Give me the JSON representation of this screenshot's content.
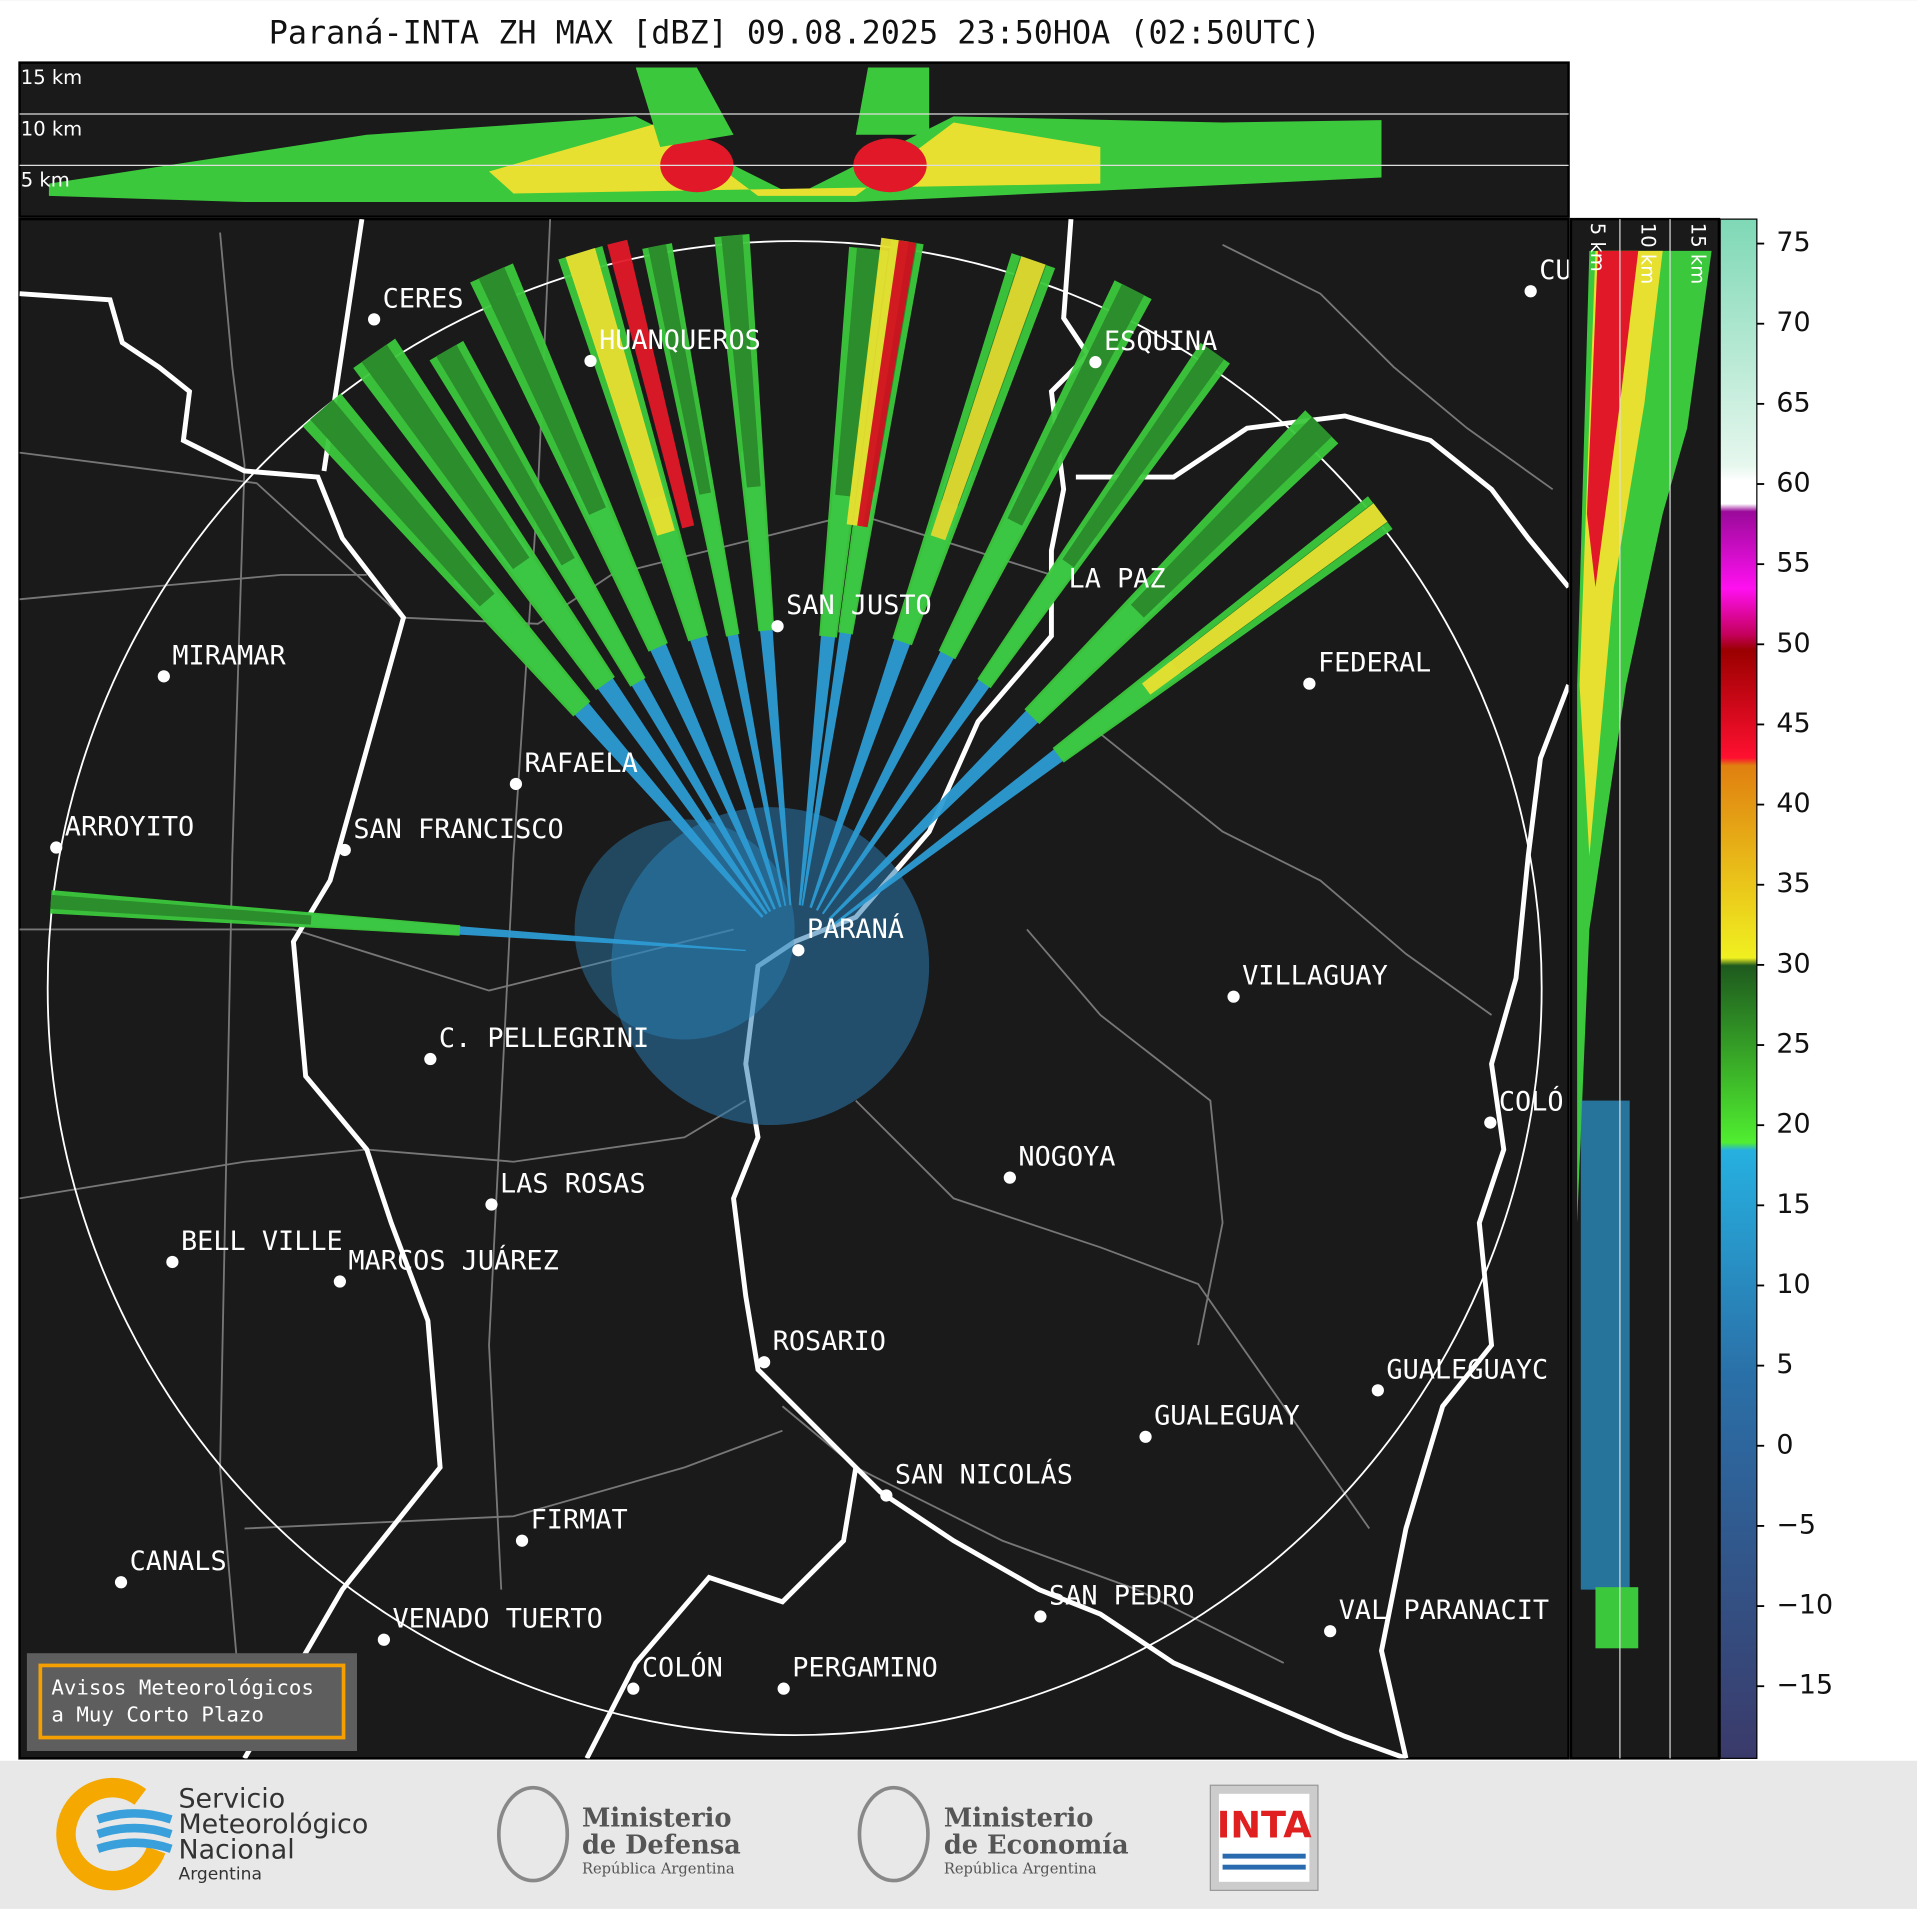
{
  "header": {
    "title": "Paraná-INTA ZH MAX [dBZ] 09.08.2025 23:50HOA (02:50UTC)"
  },
  "height_panel": {
    "labels": [
      "15 km",
      "10 km",
      "5 km"
    ]
  },
  "side_panel": {
    "labels": [
      "5 km",
      "10 km",
      "15 km"
    ]
  },
  "cities": [
    "CERES",
    "HUANQUEROS",
    "ESQUINA",
    "CU",
    "SAN JUSTO",
    "LA PAZ",
    "FEDERAL",
    "MIRAMAR",
    "RAFAELA",
    "ARROYITO",
    "SAN FRANCISCO",
    "PARANÁ",
    "VILLAGUAY",
    "C. PELLEGRINI",
    "COLÓ",
    "NOGOYA",
    "LAS ROSAS",
    "BELL VILLE",
    "MARCOS JUÁREZ",
    "ROSARIO",
    "GUALEGUAYC",
    "GUALEGUAY",
    "SAN NICOLÁS",
    "FIRMAT",
    "CANALS",
    "SAN PEDRO",
    "VAL PARANACIT",
    "VENADO TUERTO",
    "COLÓN",
    "PERGAMINO"
  ],
  "colorbar": {
    "ticks": [
      75,
      70,
      65,
      60,
      55,
      50,
      45,
      40,
      35,
      30,
      25,
      20,
      15,
      10,
      5,
      0,
      {
        "value": -5,
        "label": "−5"
      },
      {
        "value": -10,
        "label": "−10"
      },
      {
        "value": -15,
        "label": "−15"
      }
    ]
  },
  "notice": {
    "lines": [
      "Avisos Meteorológicos",
      "a Muy Corto Plazo"
    ]
  },
  "footer": {
    "smn": [
      "Servicio",
      "Meteorológico",
      "Nacional",
      "Argentina"
    ],
    "defensa": [
      "Ministerio",
      "de Defensa",
      "República Argentina"
    ],
    "economia": [
      "Ministerio",
      "de Economía",
      "República Argentina"
    ],
    "inta": "INTA"
  }
}
